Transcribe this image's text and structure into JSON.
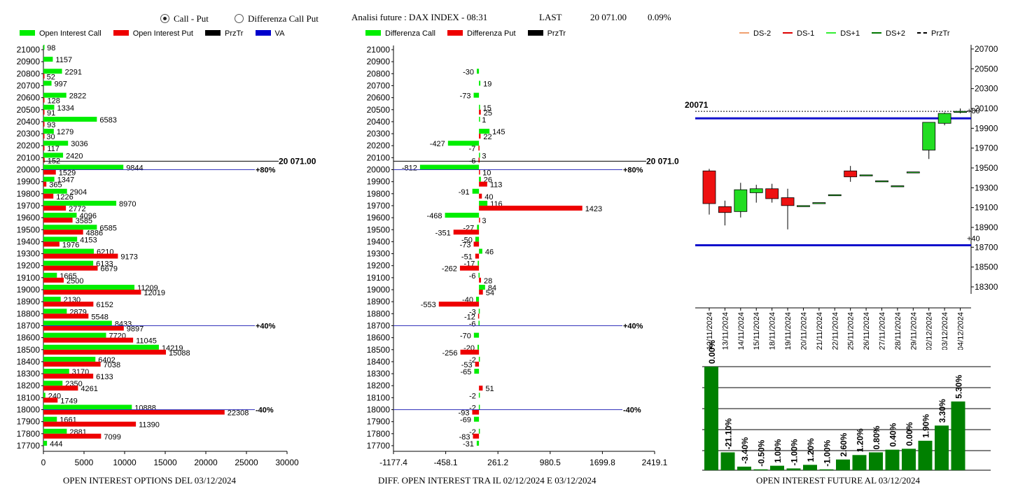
{
  "header": {
    "radio_call_put": "Call - Put",
    "radio_diff": "Differenza Call Put",
    "title": "Analisi future : DAX INDEX - 08:31",
    "last_label": "LAST",
    "last_value": "20 071.00",
    "last_change": "0.09%"
  },
  "legend1": [
    {
      "label": "Open Interest Call",
      "color": "#00ee00"
    },
    {
      "label": "Open Interest Put",
      "color": "#ee0000"
    },
    {
      "label": "PrzTr",
      "color": "#000000"
    },
    {
      "label": "VA",
      "color": "#0000cc"
    }
  ],
  "legend2": [
    {
      "label": "Differenza Call",
      "color": "#00ee00"
    },
    {
      "label": "Differenza Put",
      "color": "#ee0000"
    },
    {
      "label": "PrzTr",
      "color": "#000000"
    }
  ],
  "legend3": [
    {
      "label": "DS-2",
      "color": "#f0a070",
      "style": "solid"
    },
    {
      "label": "DS-1",
      "color": "#dd0000",
      "style": "solid"
    },
    {
      "label": "DS+1",
      "color": "#33ee33",
      "style": "solid"
    },
    {
      "label": "DS+2",
      "color": "#007700",
      "style": "solid"
    },
    {
      "label": "PrzTr",
      "color": "#000000",
      "style": "dashed"
    }
  ],
  "footers": {
    "left": "OPEN INTEREST OPTIONS DEL 03/12/2024",
    "middle": "DIFF. OPEN INTEREST TRA IL 02/12/2024 E 03/12/2024",
    "right": "OPEN INTEREST FUTURE AL 03/12/2024"
  },
  "chart_data": [
    {
      "type": "bar",
      "orientation": "horizontal",
      "strikes": [
        21000,
        20900,
        20800,
        20700,
        20600,
        20500,
        20400,
        20300,
        20200,
        20100,
        20000,
        19900,
        19800,
        19700,
        19600,
        19500,
        19400,
        19300,
        19200,
        19100,
        19000,
        18900,
        18800,
        18700,
        18600,
        18500,
        18400,
        18300,
        18200,
        18100,
        18000,
        17900,
        17800,
        17700
      ],
      "series": [
        {
          "name": "Open Interest Call",
          "color": "#00ee00",
          "values": [
            98,
            1157,
            2291,
            997,
            2822,
            1334,
            6583,
            1279,
            3036,
            2420,
            9844,
            1347,
            2904,
            8970,
            4096,
            6585,
            4153,
            6210,
            6133,
            1665,
            11209,
            2130,
            2879,
            8433,
            7720,
            14219,
            6402,
            3170,
            2350,
            240,
            10888,
            1661,
            2881,
            444
          ]
        },
        {
          "name": "Open Interest Put",
          "color": "#ee0000",
          "values": [
            null,
            null,
            52,
            null,
            128,
            91,
            93,
            30,
            117,
            152,
            1529,
            365,
            1226,
            2772,
            3585,
            4886,
            1976,
            9173,
            6679,
            2500,
            12019,
            6152,
            5548,
            9897,
            11045,
            15088,
            7038,
            6133,
            4261,
            1749,
            22308,
            11390,
            7099,
            null
          ]
        }
      ],
      "xticks": [
        "0",
        "5000",
        "10000",
        "15000",
        "20000",
        "25000",
        "30000"
      ],
      "xlim": [
        0,
        30000
      ],
      "price_line": {
        "value": 20071,
        "label": "20 071.00"
      },
      "va_lines": [
        {
          "strike": 20000,
          "label": "+80%"
        },
        {
          "strike": 18700,
          "label": "+40%"
        },
        {
          "strike": 18000,
          "label": "-40%"
        }
      ]
    },
    {
      "type": "bar",
      "orientation": "horizontal",
      "strikes": [
        21000,
        20900,
        20800,
        20700,
        20600,
        20500,
        20400,
        20300,
        20200,
        20100,
        20000,
        19900,
        19800,
        19700,
        19600,
        19500,
        19400,
        19300,
        19200,
        19100,
        19000,
        18900,
        18800,
        18700,
        18600,
        18500,
        18400,
        18300,
        18200,
        18100,
        18000,
        17900,
        17800,
        17700
      ],
      "series": [
        {
          "name": "Differenza Call",
          "color": "#00ee00",
          "values": [
            null,
            null,
            -30,
            19,
            -73,
            15,
            1,
            145,
            -427,
            3,
            -812,
            26,
            -91,
            116,
            -468,
            -27,
            -50,
            46,
            -17,
            -6,
            84,
            -40,
            -3,
            -6,
            -70,
            -20,
            -2,
            -65,
            null,
            -2,
            -2,
            -69,
            -2,
            -31
          ]
        },
        {
          "name": "Differenza Put",
          "color": "#ee0000",
          "values": [
            null,
            null,
            null,
            null,
            null,
            25,
            null,
            22,
            -7,
            -6,
            10,
            113,
            40,
            1423,
            3,
            -351,
            -73,
            -51,
            -262,
            28,
            54,
            -553,
            -12,
            null,
            null,
            -256,
            -53,
            null,
            51,
            null,
            -93,
            null,
            -83,
            null
          ]
        }
      ],
      "xticks": [
        "-1177.4",
        "-458.1",
        "261.2",
        "980.5",
        "1699.8",
        "2419.1"
      ],
      "xlim": [
        -1177.4,
        2419.1
      ],
      "price_line": {
        "value": 20071,
        "label": "20 071.00"
      },
      "va_lines": [
        {
          "strike": 20000,
          "label": "+80%"
        },
        {
          "strike": 18700,
          "label": "+40%"
        },
        {
          "strike": 18000,
          "label": "-40%"
        }
      ]
    },
    {
      "type": "candlestick",
      "dates": [
        "12/11/2024",
        "13/11/2024",
        "14/11/2024",
        "15/11/2024",
        "18/11/2024",
        "19/11/2024",
        "20/11/2024",
        "21/11/2024",
        "22/11/2024",
        "25/11/2024",
        "26/11/2024",
        "27/11/2024",
        "28/11/2024",
        "29/11/2024",
        "02/12/2024",
        "03/12/2024",
        "04/12/2024"
      ],
      "candles": [
        {
          "o": 19470,
          "h": 19490,
          "l": 19030,
          "c": 19140
        },
        {
          "o": 19110,
          "h": 19170,
          "l": 18920,
          "c": 19050
        },
        {
          "o": 19060,
          "h": 19350,
          "l": 19000,
          "c": 19280
        },
        {
          "o": 19250,
          "h": 19330,
          "l": 19150,
          "c": 19290
        },
        {
          "o": 19290,
          "h": 19340,
          "l": 19150,
          "c": 19190
        },
        {
          "o": 19200,
          "h": 19290,
          "l": 18880,
          "c": 19120
        },
        {
          "o": 19120,
          "h": 19120,
          "l": 19120,
          "c": 19120
        },
        {
          "o": 19150,
          "h": 19150,
          "l": 19150,
          "c": 19150
        },
        {
          "o": 19230,
          "h": 19230,
          "l": 19230,
          "c": 19230
        },
        {
          "o": 19470,
          "h": 19520,
          "l": 19360,
          "c": 19410
        },
        {
          "o": 19430,
          "h": 19430,
          "l": 19430,
          "c": 19430
        },
        {
          "o": 19370,
          "h": 19370,
          "l": 19370,
          "c": 19370
        },
        {
          "o": 19320,
          "h": 19320,
          "l": 19320,
          "c": 19320
        },
        {
          "o": 19460,
          "h": 19460,
          "l": 19460,
          "c": 19460
        },
        {
          "o": 19680,
          "h": 19960,
          "l": 19590,
          "c": 19960
        },
        {
          "o": 19950,
          "h": 20060,
          "l": 19930,
          "c": 20050
        },
        {
          "o": 20060,
          "h": 20100,
          "l": 20050,
          "c": 20071
        }
      ],
      "yticks": [
        "20700",
        "20500",
        "20300",
        "20100",
        "19900",
        "19700",
        "19500",
        "19300",
        "19100",
        "18900",
        "18700",
        "18500",
        "18300"
      ],
      "ylim": [
        18300,
        20700
      ],
      "last_price_label": "20071",
      "blue_lines": [
        20000,
        18720
      ],
      "annotations": [
        {
          "label": "+80",
          "value": 20071
        },
        {
          "label": "+40",
          "value": 18720
        }
      ]
    },
    {
      "type": "bar",
      "labels": [
        "0.00%",
        "-21.10%",
        "-3.40%",
        "-0.50%",
        "1.00%",
        "-1.00%",
        "1.20%",
        "-1.00%",
        "2.60%",
        "1.20%",
        "0.80%",
        "0.40%",
        "0.00%",
        "1.90%",
        "3.30%",
        "5.30%"
      ],
      "values": [
        116,
        20,
        4,
        1,
        5,
        2,
        6,
        1,
        12,
        17,
        20,
        23,
        24,
        33,
        50,
        77
      ],
      "color": "#008000"
    }
  ]
}
